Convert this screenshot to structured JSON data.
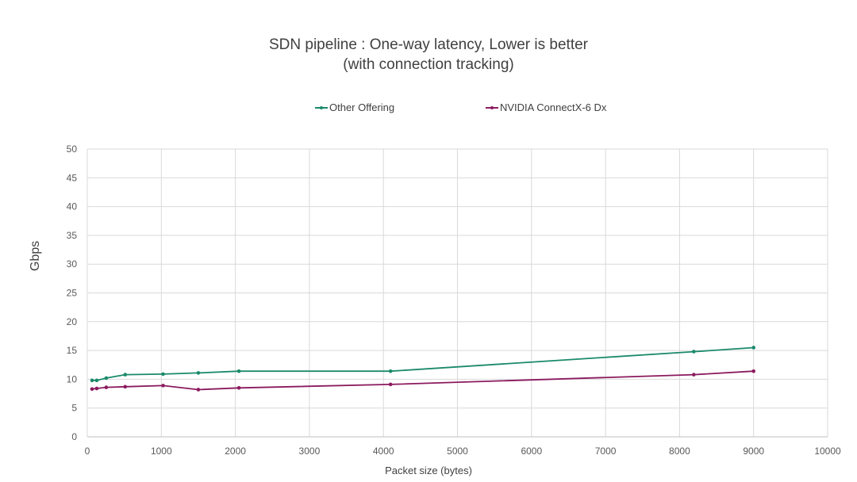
{
  "chart_data": {
    "type": "line",
    "title": "SDN pipeline : One-way latency, Lower is better",
    "subtitle": "(with connection tracking)",
    "xlabel": "Packet size (bytes)",
    "ylabel": "Gbps",
    "xlim": [
      0,
      10000
    ],
    "ylim": [
      0,
      50
    ],
    "x_ticks": [
      0,
      1000,
      2000,
      3000,
      4000,
      5000,
      6000,
      7000,
      8000,
      9000,
      10000
    ],
    "y_ticks": [
      0,
      5,
      10,
      15,
      20,
      25,
      30,
      35,
      40,
      45,
      50
    ],
    "grid": true,
    "legend_position": "top",
    "series": [
      {
        "name": "Other Offering",
        "color": "#1a8a6a",
        "x": [
          64,
          128,
          256,
          512,
          1024,
          1500,
          2048,
          4096,
          8192,
          9000
        ],
        "values": [
          9.8,
          9.8,
          10.2,
          10.8,
          10.9,
          11.1,
          11.4,
          11.4,
          14.8,
          15.5
        ]
      },
      {
        "name": "NVIDIA ConnectX-6 Dx",
        "color": "#8b1a5e",
        "x": [
          64,
          128,
          256,
          512,
          1024,
          1500,
          2048,
          4096,
          8192,
          9000
        ],
        "values": [
          8.3,
          8.4,
          8.6,
          8.7,
          8.9,
          8.2,
          8.5,
          9.1,
          10.8,
          11.4
        ]
      }
    ]
  }
}
